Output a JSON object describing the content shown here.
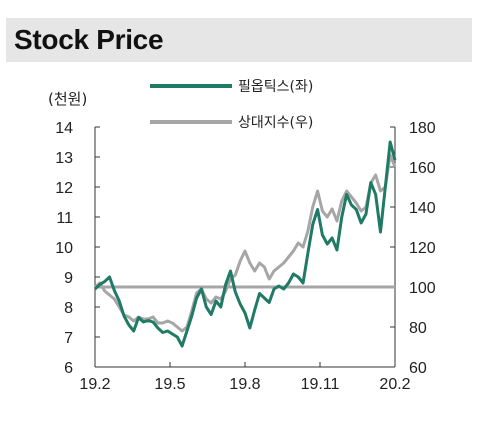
{
  "header": {
    "title": "Stock Price"
  },
  "chart_data": {
    "type": "line",
    "y_left_unit": "(천원)",
    "x_ticks": [
      "19.2",
      "19.5",
      "19.8",
      "19.11",
      "20.2"
    ],
    "y_left_ticks": [
      6,
      7,
      8,
      9,
      10,
      11,
      12,
      13,
      14
    ],
    "y_right_ticks": [
      60,
      80,
      100,
      120,
      140,
      160,
      180
    ],
    "y_left_range": [
      6,
      14
    ],
    "y_right_range": [
      60,
      180
    ],
    "reference_line_right": 100,
    "colors": {
      "price": "#1f7a66",
      "relative": "#a6a6a6",
      "reference": "#a6a6a6"
    },
    "series": [
      {
        "name": "필옵틱스(좌)",
        "axis": "left",
        "values": [
          8.6,
          8.75,
          8.85,
          9.0,
          8.55,
          8.2,
          7.7,
          7.4,
          7.2,
          7.65,
          7.5,
          7.55,
          7.5,
          7.3,
          7.15,
          7.2,
          7.1,
          7.0,
          6.7,
          7.2,
          7.7,
          8.3,
          8.6,
          8.0,
          7.75,
          8.2,
          8.0,
          8.75,
          9.2,
          8.5,
          8.1,
          7.8,
          7.3,
          7.9,
          8.45,
          8.3,
          8.15,
          8.6,
          8.7,
          8.6,
          8.8,
          9.1,
          9.0,
          8.8,
          9.8,
          10.75,
          11.25,
          10.4,
          10.1,
          10.3,
          9.9,
          11.0,
          11.75,
          11.4,
          11.25,
          10.8,
          11.1,
          12.15,
          11.75,
          10.5,
          12.0,
          13.5,
          12.9
        ]
      },
      {
        "name": "상대지수(우)",
        "axis": "right",
        "values": [
          100,
          102,
          98,
          96,
          94,
          90,
          86,
          85,
          83,
          85,
          84,
          84,
          85,
          82,
          82,
          83,
          82,
          80,
          78,
          80,
          88,
          97,
          99,
          94,
          92,
          95,
          94,
          98,
          104,
          106,
          113,
          118,
          112,
          108,
          112,
          110,
          104,
          108,
          110,
          112,
          115,
          118,
          122,
          120,
          128,
          140,
          148,
          138,
          135,
          139,
          133,
          143,
          148,
          145,
          142,
          138,
          140,
          152,
          156,
          148,
          150,
          166,
          160
        ]
      }
    ]
  }
}
